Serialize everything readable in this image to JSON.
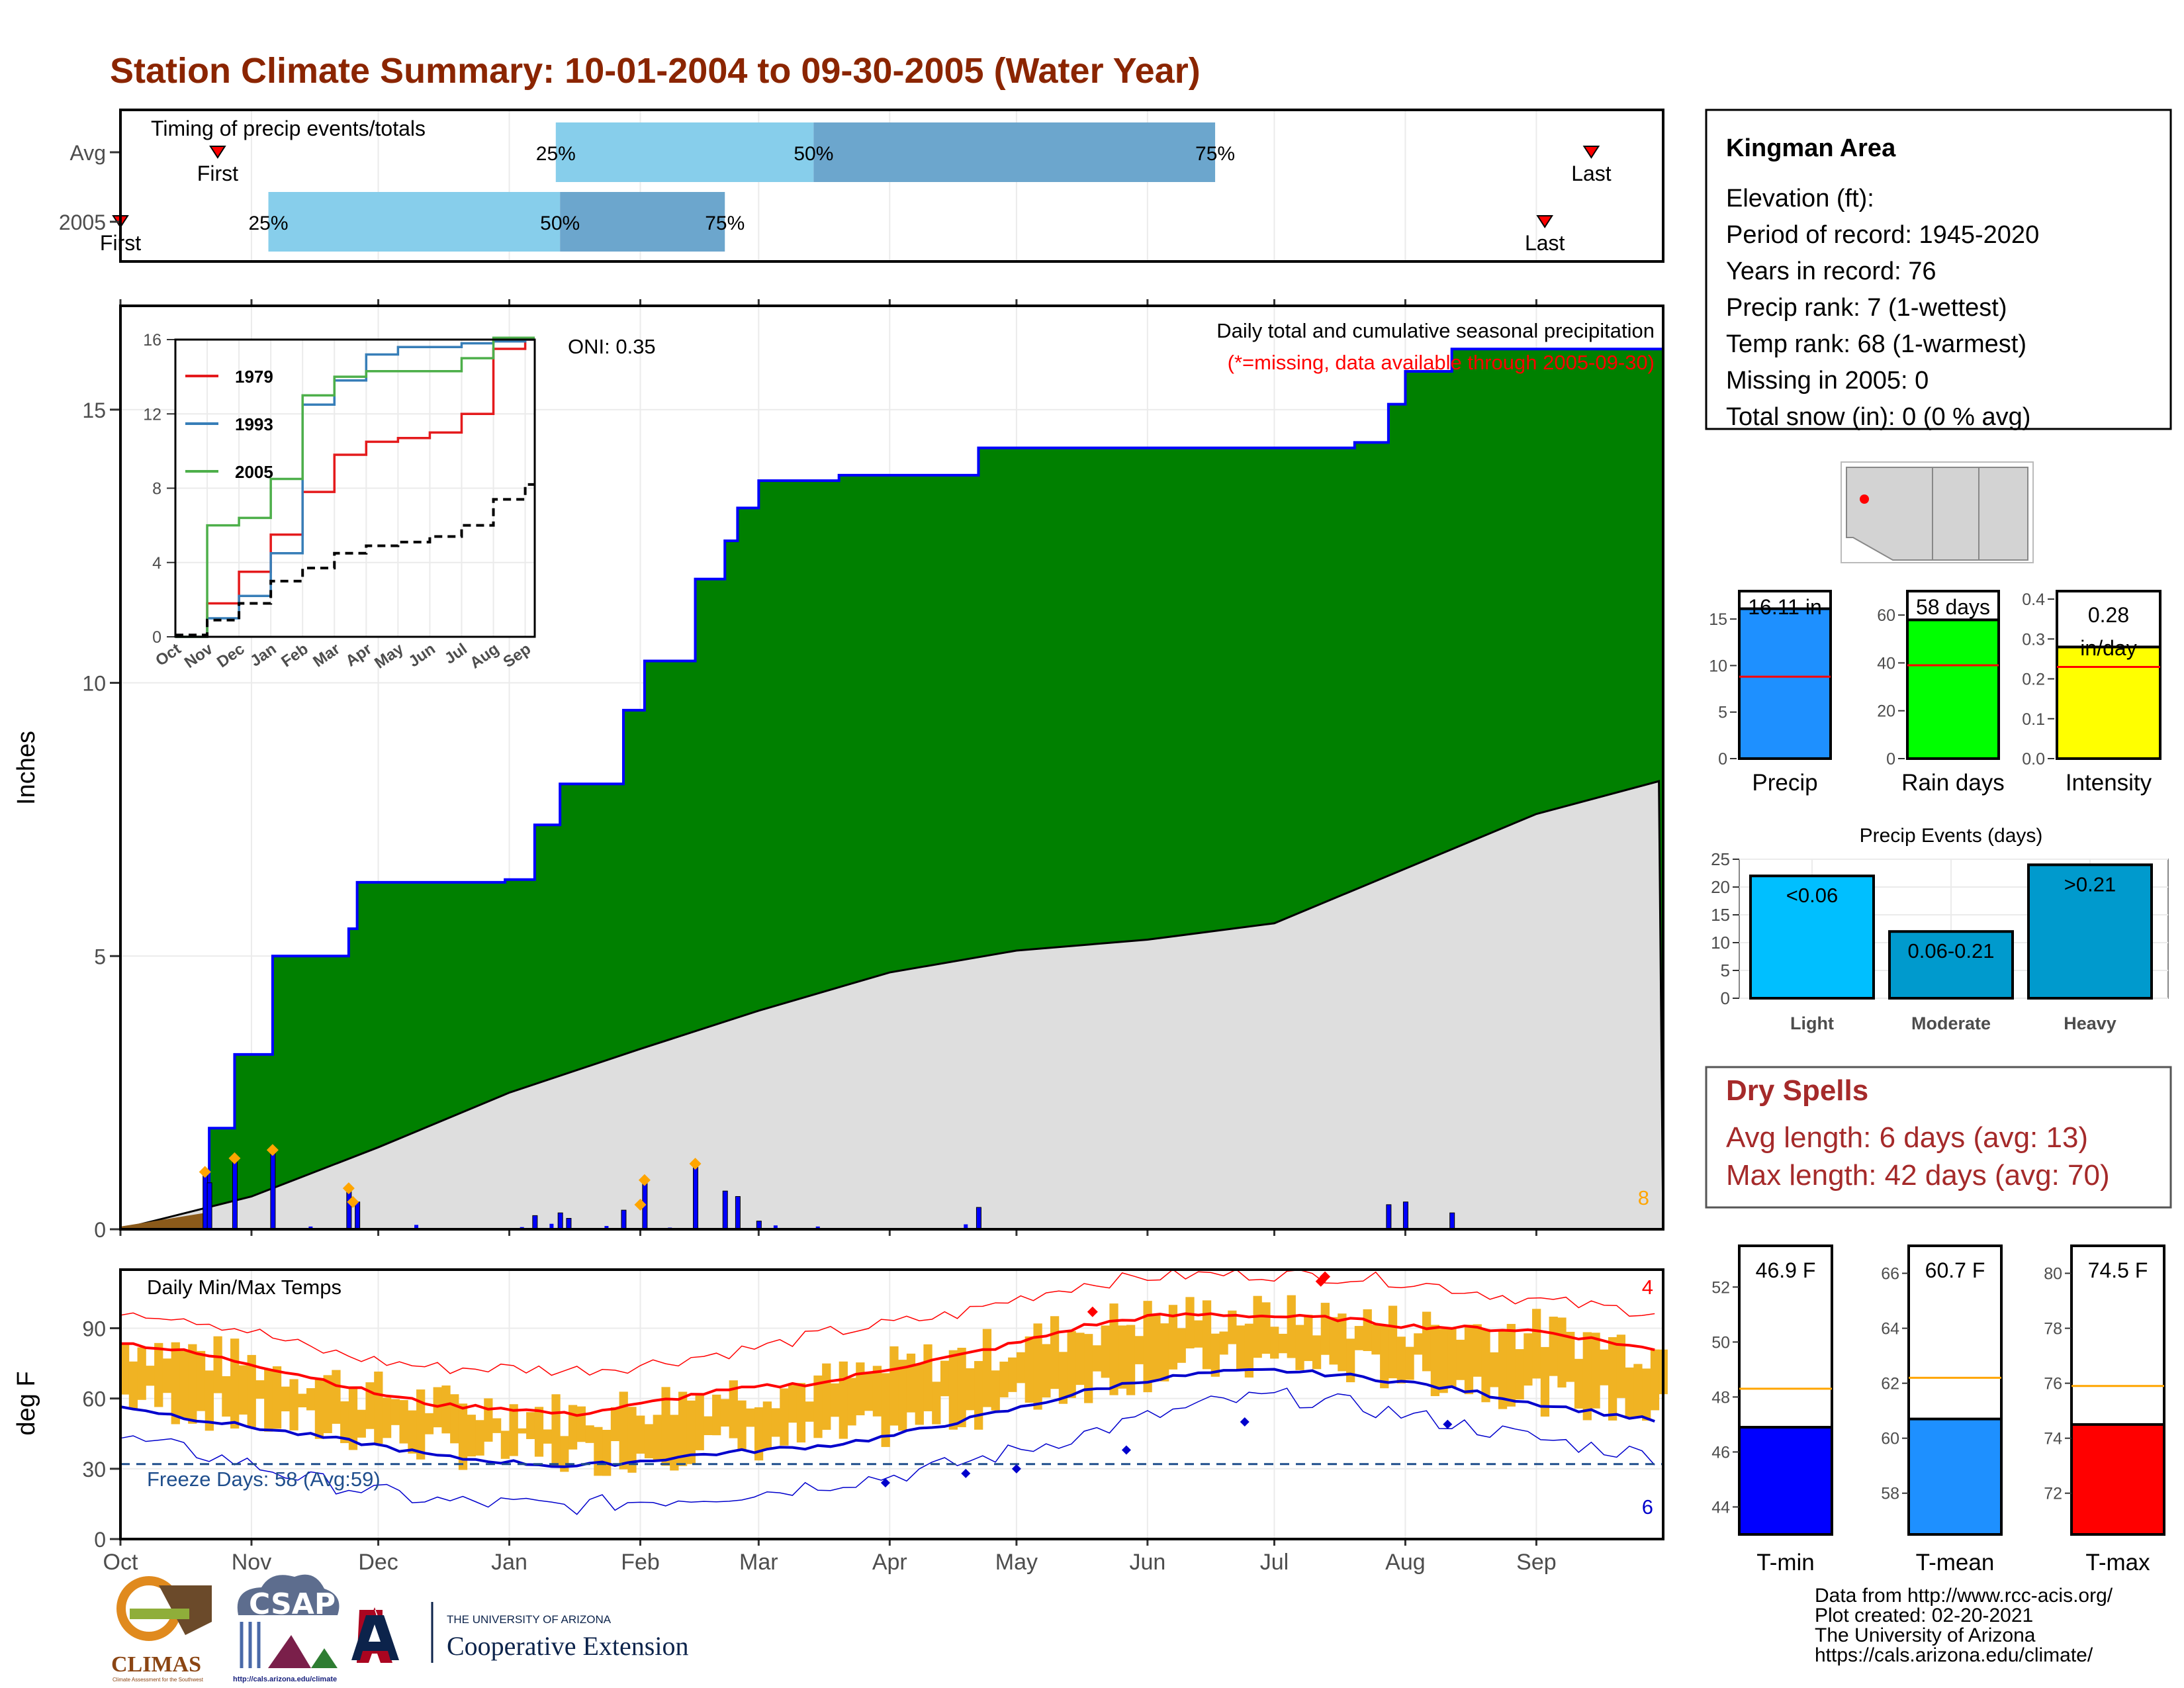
{
  "title": "Station Climate Summary: 10-01-2004 to 09-30-2005 (Water Year)",
  "colors": {
    "title": "#8b2500",
    "green": "#008000",
    "blue_line": "#0000ff",
    "normal_fill": "#dedede",
    "early_fill": "#8b5a1a",
    "bar_blue": "#0000ff",
    "diamond": "#ffa500",
    "light_blue": "#87ceeb",
    "mid_blue": "#6ca6cd",
    "temp_fill": "#f0b323",
    "tmax_line": "#ff0000",
    "tmin_line": "#0000cc",
    "precip_box": "#1e90ff",
    "raindays_box": "#00ff00",
    "intensity_box": "#ffff00",
    "light_event": "#00bfff",
    "moderate_event": "#009acd",
    "dry_spell_text": "#a52a2a",
    "tmin_box": "#0000ff",
    "tmean_box": "#1e90ff",
    "tmax_box": "#ff0000"
  },
  "months": [
    "Oct",
    "Nov",
    "Dec",
    "Jan",
    "Feb",
    "Mar",
    "Apr",
    "May",
    "Jun",
    "Jul",
    "Aug",
    "Sep"
  ],
  "timing": {
    "label": "Timing of precip events/totals",
    "rows": [
      {
        "name": "Avg",
        "first": "First",
        "last": "Last",
        "p25": "25%",
        "p50": "50%",
        "p75": "75%"
      },
      {
        "name": "2005",
        "first": "First",
        "last": "Last",
        "p25": "25%",
        "p50": "50%",
        "p75": "75%"
      }
    ]
  },
  "chart_data": [
    {
      "type": "area",
      "name": "Daily total and cumulative seasonal precipitation",
      "title": "Daily total and cumulative seasonal precipitation",
      "subtitle": "(*=missing, data available through 2005-09-30)",
      "ylabel": "Inches",
      "ylim": [
        0,
        16.9
      ],
      "yticks": [
        0,
        5,
        10,
        15
      ],
      "oni": "ONI: 0.35",
      "corner_count": "8",
      "cumulative_2005": [
        {
          "x": "2004-10-01",
          "y": 0.0
        },
        {
          "x": "2004-10-21",
          "y": 0.0
        },
        {
          "x": "2004-10-22",
          "y": 1.85
        },
        {
          "x": "2004-10-28",
          "y": 3.2
        },
        {
          "x": "2004-11-06",
          "y": 5.0
        },
        {
          "x": "2004-11-24",
          "y": 5.5
        },
        {
          "x": "2004-11-26",
          "y": 6.35
        },
        {
          "x": "2004-12-31",
          "y": 6.4
        },
        {
          "x": "2005-01-07",
          "y": 7.4
        },
        {
          "x": "2005-01-13",
          "y": 8.15
        },
        {
          "x": "2005-01-28",
          "y": 9.5
        },
        {
          "x": "2005-02-02",
          "y": 10.4
        },
        {
          "x": "2005-02-14",
          "y": 11.9
        },
        {
          "x": "2005-02-21",
          "y": 12.6
        },
        {
          "x": "2005-02-24",
          "y": 13.2
        },
        {
          "x": "2005-03-01",
          "y": 13.7
        },
        {
          "x": "2005-03-20",
          "y": 13.8
        },
        {
          "x": "2005-04-22",
          "y": 14.3
        },
        {
          "x": "2005-07-20",
          "y": 14.4
        },
        {
          "x": "2005-07-28",
          "y": 15.1
        },
        {
          "x": "2005-08-01",
          "y": 15.7
        },
        {
          "x": "2005-08-12",
          "y": 16.11
        },
        {
          "x": "2005-09-30",
          "y": 16.11
        }
      ],
      "normal_cumulative": [
        {
          "x": "2004-10-01",
          "y": 0.0
        },
        {
          "x": "2004-11-01",
          "y": 0.6
        },
        {
          "x": "2004-12-01",
          "y": 1.5
        },
        {
          "x": "2005-01-01",
          "y": 2.5
        },
        {
          "x": "2005-02-01",
          "y": 3.3
        },
        {
          "x": "2005-03-01",
          "y": 4.0
        },
        {
          "x": "2005-04-01",
          "y": 4.7
        },
        {
          "x": "2005-05-01",
          "y": 5.1
        },
        {
          "x": "2005-06-01",
          "y": 5.3
        },
        {
          "x": "2005-07-01",
          "y": 5.6
        },
        {
          "x": "2005-08-01",
          "y": 6.6
        },
        {
          "x": "2005-09-01",
          "y": 7.6
        },
        {
          "x": "2005-09-30",
          "y": 8.2
        }
      ],
      "daily_bars": [
        {
          "x": "2004-10-21",
          "y": 1.0
        },
        {
          "x": "2004-10-22",
          "y": 0.85
        },
        {
          "x": "2004-10-28",
          "y": 1.3
        },
        {
          "x": "2004-11-06",
          "y": 1.4
        },
        {
          "x": "2004-11-24",
          "y": 0.7
        },
        {
          "x": "2004-11-26",
          "y": 0.5
        },
        {
          "x": "2005-01-07",
          "y": 0.25
        },
        {
          "x": "2005-01-13",
          "y": 0.3
        },
        {
          "x": "2005-01-15",
          "y": 0.2
        },
        {
          "x": "2005-01-28",
          "y": 0.35
        },
        {
          "x": "2005-02-02",
          "y": 0.9
        },
        {
          "x": "2005-02-14",
          "y": 1.2
        },
        {
          "x": "2005-02-21",
          "y": 0.7
        },
        {
          "x": "2005-02-24",
          "y": 0.6
        },
        {
          "x": "2005-03-01",
          "y": 0.15
        },
        {
          "x": "2005-04-22",
          "y": 0.4
        },
        {
          "x": "2005-07-28",
          "y": 0.45
        },
        {
          "x": "2005-08-01",
          "y": 0.5
        },
        {
          "x": "2005-08-12",
          "y": 0.3
        }
      ],
      "extreme_diamonds": [
        {
          "x": "2004-10-21",
          "y": 1.05
        },
        {
          "x": "2004-10-28",
          "y": 1.3
        },
        {
          "x": "2004-11-06",
          "y": 1.45
        },
        {
          "x": "2004-11-24",
          "y": 0.75
        },
        {
          "x": "2004-11-25",
          "y": 0.5
        },
        {
          "x": "2005-02-02",
          "y": 0.9
        },
        {
          "x": "2005-02-01",
          "y": 0.45
        },
        {
          "x": "2005-02-14",
          "y": 1.2
        }
      ]
    },
    {
      "type": "line",
      "name": "inset-cumulative",
      "xticks": [
        "Oct",
        "Nov",
        "Dec",
        "Jan",
        "Feb",
        "Mar",
        "Apr",
        "May",
        "Jun",
        "Jul",
        "Aug",
        "Sep"
      ],
      "yticks": [
        0,
        4,
        8,
        12,
        16
      ],
      "ylim": [
        0,
        16
      ],
      "series": [
        {
          "name": "1979",
          "color": "#e41a1c",
          "values": [
            0,
            1.8,
            3.5,
            5.5,
            7.8,
            9.8,
            10.5,
            10.7,
            11.0,
            12.0,
            15.5,
            16.0
          ]
        },
        {
          "name": "1993",
          "color": "#377eb8",
          "values": [
            0,
            1.0,
            2.2,
            4.5,
            12.5,
            13.8,
            15.2,
            15.6,
            15.6,
            15.8,
            15.9,
            16.0
          ]
        },
        {
          "name": "2005",
          "color": "#4daf4a",
          "values": [
            0,
            6.0,
            6.4,
            8.5,
            13.0,
            14.0,
            14.3,
            14.3,
            14.3,
            15.0,
            16.1,
            16.1
          ]
        },
        {
          "name": "Avg",
          "color": "#000000",
          "values": [
            0.1,
            0.9,
            1.8,
            3.0,
            3.7,
            4.5,
            4.9,
            5.1,
            5.4,
            6.0,
            7.4,
            8.2
          ]
        }
      ]
    },
    {
      "type": "line",
      "name": "Daily Min/Max Temps",
      "title": "Daily Min/Max Temps",
      "ylabel": "deg F",
      "ylim": [
        0,
        115
      ],
      "yticks": [
        0,
        30,
        60,
        90
      ],
      "freeze_line": 32,
      "freeze_label": "Freeze Days: 58 (Avg:59)",
      "corner_max": "4",
      "corner_min": "6",
      "avg_max": [
        84,
        80,
        75,
        69,
        62,
        57,
        56,
        53,
        57,
        62,
        65,
        67,
        73,
        78,
        84,
        91,
        95,
        96,
        95,
        94,
        91,
        90,
        89,
        85,
        80
      ],
      "avg_min": [
        57,
        52,
        48,
        44,
        40,
        35,
        33,
        31,
        33,
        36,
        38,
        40,
        44,
        50,
        56,
        63,
        68,
        71,
        72,
        70,
        67,
        63,
        58,
        54,
        50
      ],
      "rec_max": [
        98,
        95,
        89,
        81,
        76,
        73,
        73,
        72,
        74,
        78,
        82,
        88,
        92,
        96,
        103,
        109,
        112,
        113,
        113,
        112,
        110,
        106,
        102,
        99,
        97
      ],
      "rec_min": [
        43,
        38,
        32,
        25,
        20,
        16,
        15,
        14,
        16,
        18,
        20,
        24,
        27,
        32,
        38,
        45,
        52,
        58,
        61,
        58,
        53,
        48,
        43,
        39,
        35
      ]
    },
    {
      "type": "bar",
      "name": "season-totals",
      "categories": [
        "Precip",
        "Rain days",
        "Intensity"
      ],
      "labels": [
        "16.11 in",
        "58 days",
        "0.28 in/day"
      ],
      "values": [
        16.11,
        58,
        0.28
      ],
      "averages": [
        8.8,
        39,
        0.23
      ],
      "ylims": [
        [
          0,
          18
        ],
        [
          0,
          70
        ],
        [
          0,
          0.42
        ]
      ],
      "yticks": [
        [
          0,
          5,
          10,
          15
        ],
        [
          0,
          20,
          40,
          60
        ],
        [
          0.0,
          0.1,
          0.2,
          0.3,
          0.4
        ]
      ]
    },
    {
      "type": "bar",
      "name": "Precip Events (days)",
      "title": "Precip Events (days)",
      "categories": [
        "Light",
        "Moderate",
        "Heavy"
      ],
      "labels": [
        "<0.06",
        "0.06-0.21",
        ">0.21"
      ],
      "values": [
        22,
        12,
        24
      ],
      "ylim": [
        0,
        25
      ],
      "yticks": [
        0,
        5,
        10,
        15,
        20,
        25
      ]
    },
    {
      "type": "bar",
      "name": "temperature-means",
      "categories": [
        "T-min",
        "T-mean",
        "T-max"
      ],
      "labels": [
        "46.9 F",
        "60.7 F",
        "74.5 F"
      ],
      "values": [
        46.9,
        60.7,
        74.5
      ],
      "averages": [
        48.3,
        62.2,
        75.9
      ],
      "ylims": [
        [
          43,
          53.5
        ],
        [
          56.5,
          67
        ],
        [
          70.5,
          81
        ]
      ],
      "yticks": [
        [
          44,
          46,
          48,
          50,
          52
        ],
        [
          58,
          60,
          62,
          64,
          66
        ],
        [
          72,
          74,
          76,
          78,
          80
        ]
      ]
    }
  ],
  "station": {
    "name": "Kingman Area",
    "lines": [
      "Elevation (ft):",
      "Period of record: 1945-2020",
      "Years in record: 76",
      "Precip rank: 7 (1-wettest)",
      "Temp rank: 68 (1-warmest)",
      "Missing in 2005: 0",
      "Total snow (in): 0 (0 % avg)"
    ]
  },
  "dry_spells": {
    "title": "Dry Spells",
    "avg": "Avg length: 6 days (avg: 13)",
    "max": "Max length: 42 days (avg: 70)"
  },
  "footer": {
    "lines": [
      "Data from http://www.rcc-acis.org/",
      "Plot created: 02-20-2021",
      "The University of Arizona",
      "https://cals.arizona.edu/climate/"
    ],
    "climas": "CLIMAS",
    "climas_sub": "Climate Assessment for the Southwest",
    "csap": "CSAP",
    "csap_url": "http://cals.arizona.edu/climate",
    "ua_small": "THE UNIVERSITY OF ARIZONA",
    "ua_big": "Cooperative Extension"
  }
}
